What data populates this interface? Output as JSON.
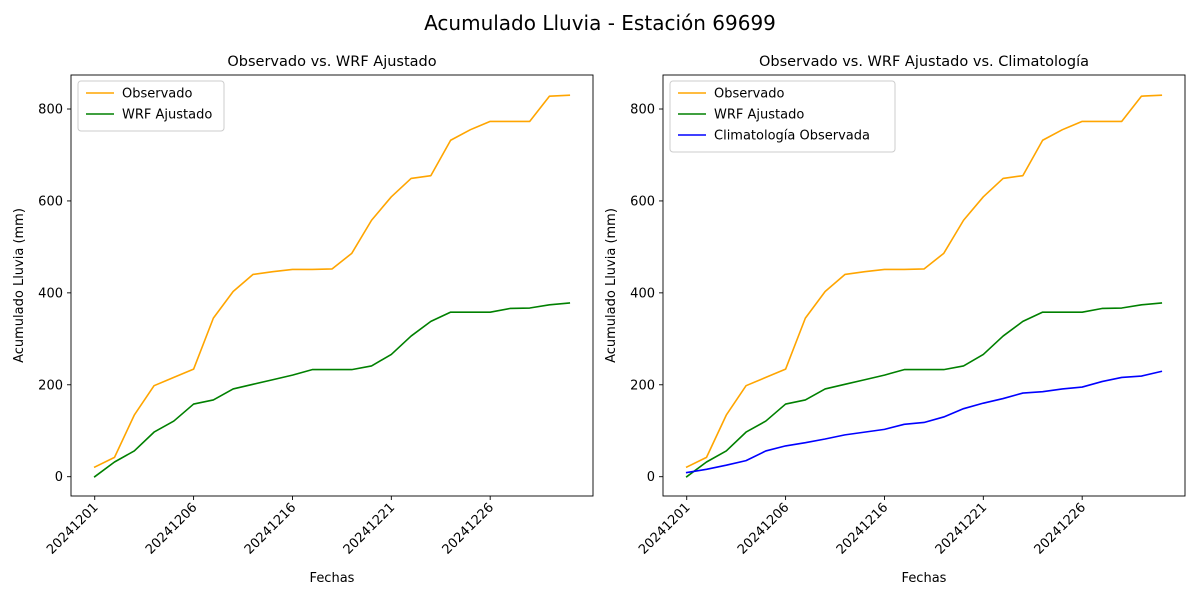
{
  "figure": {
    "title": "Acumulado Lluvia - Estación 69699"
  },
  "colors": {
    "observado": "#ffa500",
    "wrf": "#008000",
    "climatologia": "#0000ff"
  },
  "chart_data": [
    {
      "type": "line",
      "title": "Observado vs. WRF Ajustado",
      "xlabel": "Fechas",
      "ylabel": "Acumulado Lluvia (mm)",
      "x_tick_labels": [
        "20241201",
        "20241206",
        "20241216",
        "20241221",
        "20241226"
      ],
      "y_tick_labels": [
        "0",
        "200",
        "400",
        "600",
        "800"
      ],
      "ylim": [
        -42,
        874
      ],
      "grid": false,
      "legend_position": "top-left",
      "series": [
        {
          "name": "Observado",
          "color": "#ffa500",
          "values": [
            21,
            42,
            134,
            198,
            216,
            234,
            345,
            403,
            440,
            446,
            451,
            451,
            452,
            486,
            558,
            609,
            649,
            655,
            732,
            755,
            773,
            773,
            773,
            828,
            830
          ]
        },
        {
          "name": "WRF Ajustado",
          "color": "#008000",
          "values": [
            0,
            32,
            56,
            97,
            121,
            158,
            167,
            191,
            201,
            211,
            221,
            233,
            233,
            233,
            241,
            266,
            306,
            338,
            358,
            358,
            358,
            366,
            367,
            374,
            378
          ]
        }
      ]
    },
    {
      "type": "line",
      "title": "Observado vs. WRF Ajustado vs. Climatología",
      "xlabel": "Fechas",
      "ylabel": "Acumulado Lluvia (mm)",
      "x_tick_labels": [
        "20241201",
        "20241206",
        "20241216",
        "20241221",
        "20241226"
      ],
      "y_tick_labels": [
        "0",
        "200",
        "400",
        "600",
        "800"
      ],
      "ylim": [
        -42,
        874
      ],
      "grid": false,
      "legend_position": "top-left",
      "series": [
        {
          "name": "Observado",
          "color": "#ffa500",
          "values": [
            21,
            42,
            134,
            198,
            216,
            234,
            345,
            403,
            440,
            446,
            451,
            451,
            452,
            486,
            558,
            609,
            649,
            655,
            732,
            755,
            773,
            773,
            773,
            828,
            830
          ]
        },
        {
          "name": "WRF Ajustado",
          "color": "#008000",
          "values": [
            0,
            32,
            56,
            97,
            121,
            158,
            167,
            191,
            201,
            211,
            221,
            233,
            233,
            233,
            241,
            266,
            306,
            338,
            358,
            358,
            358,
            366,
            367,
            374,
            378
          ]
        },
        {
          "name": "Climatología Observada",
          "color": "#0000ff",
          "values": [
            9,
            16,
            25,
            35,
            56,
            67,
            74,
            82,
            91,
            97,
            103,
            114,
            118,
            130,
            148,
            160,
            170,
            182,
            185,
            191,
            195,
            207,
            216,
            219,
            229
          ]
        }
      ]
    }
  ]
}
